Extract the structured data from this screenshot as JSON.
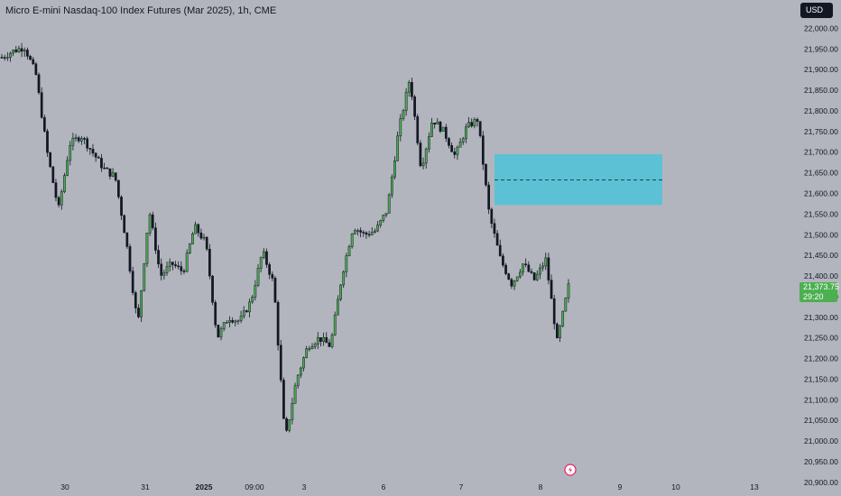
{
  "header": {
    "title": "Micro E-mini Nasdaq-100 Index Futures (Mar 2025), 1h, CME",
    "currency_label": "USD"
  },
  "price_tag": {
    "price": "21,373.75",
    "countdown": "29:20",
    "color": "#4caf50"
  },
  "colors": {
    "background": "#b2b5be",
    "up_candle": "#4caf50",
    "down_candle": "#131722",
    "zone_fill": "#4cc3d9",
    "text": "#131722"
  },
  "icons": {
    "marker": "lightning-icon"
  },
  "chart_data": {
    "type": "candlestick",
    "title": "Micro E-mini Nasdaq-100 Index Futures (Mar 2025), 1h, CME",
    "ylim": [
      20880,
      22060
    ],
    "y_ticks": [
      22000,
      21950,
      21900,
      21850,
      21800,
      21750,
      21700,
      21650,
      21600,
      21550,
      21500,
      21450,
      21400,
      21350,
      21300,
      21250,
      21200,
      21150,
      21100,
      21050,
      21000,
      20950,
      20900
    ],
    "x_tick_labels": [
      "30",
      "31",
      "2025",
      "09:00",
      "3",
      "6",
      "7",
      "8",
      "9",
      "10",
      "13"
    ],
    "x_tick_bold": [
      false,
      false,
      true,
      false,
      false,
      false,
      false,
      false,
      false,
      false,
      false
    ],
    "zone": {
      "top": 21695,
      "bottom": 21572,
      "midline": 21633
    },
    "last_price": 21373.75,
    "legend_position": "none",
    "grid": false,
    "waypoints": [
      [
        0,
        21930
      ],
      [
        1,
        21945
      ],
      [
        2,
        21955
      ],
      [
        3,
        21890
      ],
      [
        4,
        21700
      ],
      [
        5,
        21560
      ],
      [
        6,
        21720
      ],
      [
        7,
        21740
      ],
      [
        8,
        21700
      ],
      [
        9,
        21660
      ],
      [
        10,
        21640
      ],
      [
        11,
        21480
      ],
      [
        12,
        21280
      ],
      [
        13,
        21560
      ],
      [
        14,
        21400
      ],
      [
        15,
        21430
      ],
      [
        16,
        21410
      ],
      [
        17,
        21520
      ],
      [
        18,
        21480
      ],
      [
        19,
        21250
      ],
      [
        20,
        21300
      ],
      [
        21,
        21290
      ],
      [
        22,
        21340
      ],
      [
        23,
        21460
      ],
      [
        24,
        21380
      ],
      [
        25,
        21000
      ],
      [
        26,
        21150
      ],
      [
        27,
        21230
      ],
      [
        28,
        21250
      ],
      [
        29,
        21230
      ],
      [
        30,
        21400
      ],
      [
        31,
        21520
      ],
      [
        32,
        21500
      ],
      [
        33,
        21510
      ],
      [
        34,
        21560
      ],
      [
        35,
        21750
      ],
      [
        36,
        21880
      ],
      [
        37,
        21660
      ],
      [
        38,
        21780
      ],
      [
        39,
        21750
      ],
      [
        40,
        21690
      ],
      [
        41,
        21760
      ],
      [
        42,
        21780
      ],
      [
        43,
        21550
      ],
      [
        44,
        21440
      ],
      [
        45,
        21380
      ],
      [
        46,
        21430
      ],
      [
        47,
        21390
      ],
      [
        48,
        21440
      ],
      [
        49,
        21240
      ],
      [
        50,
        21375
      ]
    ]
  }
}
